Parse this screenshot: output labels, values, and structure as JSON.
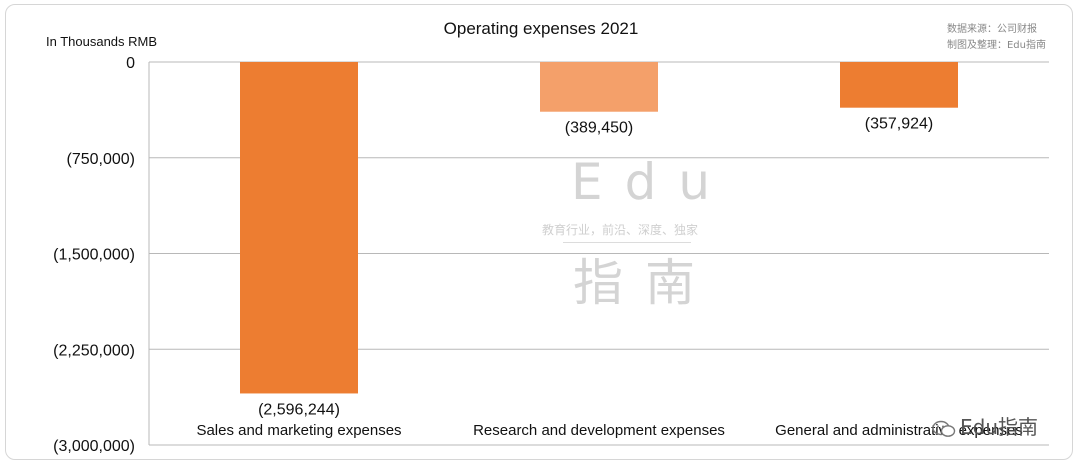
{
  "header": {
    "title": "Operating expenses 2021",
    "unit_label": "In Thousands RMB",
    "source_line1": "数据来源：公司财报",
    "source_line2": "制图及整理：Edu指南"
  },
  "watermark": {
    "big_text": "Edu",
    "tagline": "教育行业，前沿、深度、独家",
    "cn_text": "指南",
    "corner_text": "Edu指南"
  },
  "colors": {
    "bar_primary": "#ED7D31",
    "bar_secondary": "#F4A06A",
    "grid": "#b8b8b8"
  },
  "chart_data": {
    "type": "bar",
    "title": "Operating expenses 2021",
    "ylabel": "In Thousands RMB",
    "xlabel": "",
    "categories": [
      "Sales and marketing expenses",
      "Research and development expenses",
      "General and administrative expenses"
    ],
    "values": [
      -2596244,
      -389450,
      -357924
    ],
    "data_labels": [
      "(2,596,244)",
      "(389,450)",
      "(357,924)"
    ],
    "ylim": [
      -3000000,
      0
    ],
    "yticks": [
      0,
      -750000,
      -1500000,
      -2250000,
      -3000000
    ],
    "ytick_labels": [
      "0",
      "(750,000)",
      "(1,500,000)",
      "(2,250,000)",
      "(3,000,000)"
    ],
    "grid": true,
    "legend": "none"
  }
}
